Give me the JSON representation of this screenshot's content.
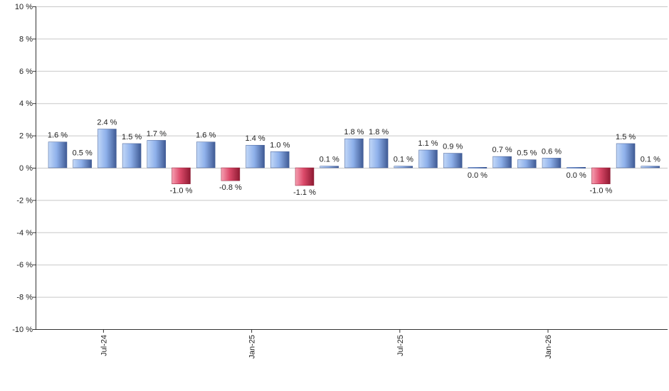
{
  "chart_data": {
    "type": "bar",
    "y_tick_labels": [
      "10 %",
      "8 %",
      "6 %",
      "4 %",
      "2 %",
      "0 %",
      "-2 %",
      "-4 %",
      "-6 %",
      "-8 %",
      "-10 %"
    ],
    "y_ticks": [
      10,
      8,
      6,
      4,
      2,
      0,
      -2,
      -4,
      -6,
      -8,
      -10
    ],
    "ylim": [
      -10,
      10
    ],
    "grid": true,
    "x_tick_labels": [
      {
        "label": "Jul-24",
        "index": 2
      },
      {
        "label": "Jan-25",
        "index": 8
      },
      {
        "label": "Jul-25",
        "index": 14
      },
      {
        "label": "Jan-26",
        "index": 20
      }
    ],
    "values": [
      1.6,
      0.5,
      2.4,
      1.5,
      1.7,
      -1.0,
      1.6,
      -0.8,
      1.4,
      1.0,
      -1.1,
      0.1,
      1.8,
      1.8,
      0.1,
      1.1,
      0.9,
      0.0,
      0.7,
      0.5,
      0.6,
      0.0,
      -1.0,
      1.5,
      0.1
    ],
    "value_labels": [
      "1.6 %",
      "0.5 %",
      "2.4 %",
      "1.5 %",
      "1.7 %",
      "-1.0 %",
      "1.6 %",
      "-0.8 %",
      "1.4 %",
      "1.0 %",
      "-1.1 %",
      "0.1 %",
      "1.8 %",
      "1.8 %",
      "0.1 %",
      "1.1 %",
      "0.9 %",
      "0.0 %",
      "0.7 %",
      "0.5 %",
      "0.6 %",
      "0.0 %",
      "-1.0 %",
      "1.5 %",
      "0.1 %"
    ],
    "colors": {
      "positive_light": "#aecbf5",
      "positive_dark": "#4f6fae",
      "negative_light": "#f08aa0",
      "negative_dark": "#a8223e",
      "grid": "#c8c8c8",
      "axis": "#333333"
    }
  }
}
